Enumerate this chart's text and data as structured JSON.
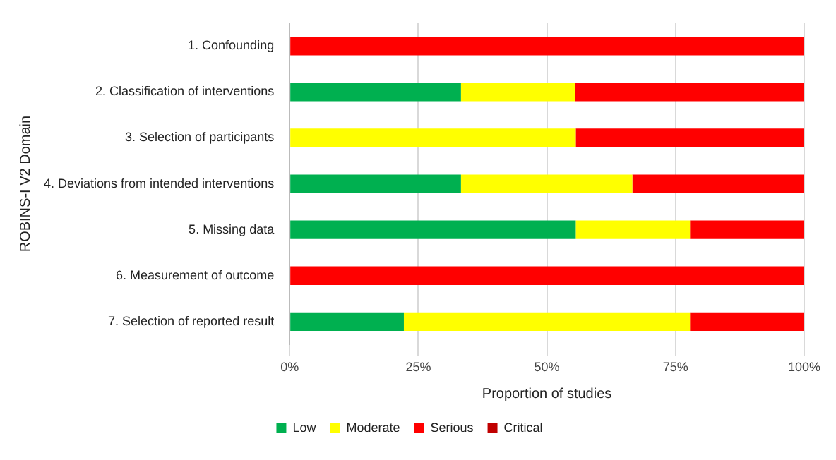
{
  "chart_data": {
    "type": "bar",
    "orientation": "horizontal",
    "stacked": true,
    "xlabel": "Proportion of studies",
    "ylabel": "ROBINS-I V2 Domain",
    "categories": [
      "1. Confounding",
      "2. Classification of interventions",
      "3. Selection of participants",
      "4. Deviations from intended interventions",
      "5. Missing data",
      "6. Measurement of outcome",
      "7. Selection of reported result"
    ],
    "series": [
      {
        "name": "Low",
        "color": "#00b050",
        "values": [
          0,
          33.3,
          0,
          33.3,
          55.6,
          0,
          22.2
        ]
      },
      {
        "name": "Moderate",
        "color": "#ffff00",
        "values": [
          0,
          22.2,
          55.6,
          33.3,
          22.2,
          0,
          55.6
        ]
      },
      {
        "name": "Serious",
        "color": "#ff0000",
        "values": [
          100,
          44.4,
          44.4,
          33.3,
          22.2,
          100,
          22.2
        ]
      },
      {
        "name": "Critical",
        "color": "#c00000",
        "values": [
          0,
          0,
          0,
          0,
          0,
          0,
          0
        ]
      }
    ],
    "xlim": [
      0,
      100
    ],
    "xticks": [
      {
        "value": 0,
        "label": "0%"
      },
      {
        "value": 25,
        "label": "25%"
      },
      {
        "value": 50,
        "label": "50%"
      },
      {
        "value": 75,
        "label": "75%"
      },
      {
        "value": 100,
        "label": "100%"
      }
    ],
    "grid": "x",
    "legend": "bottom"
  }
}
